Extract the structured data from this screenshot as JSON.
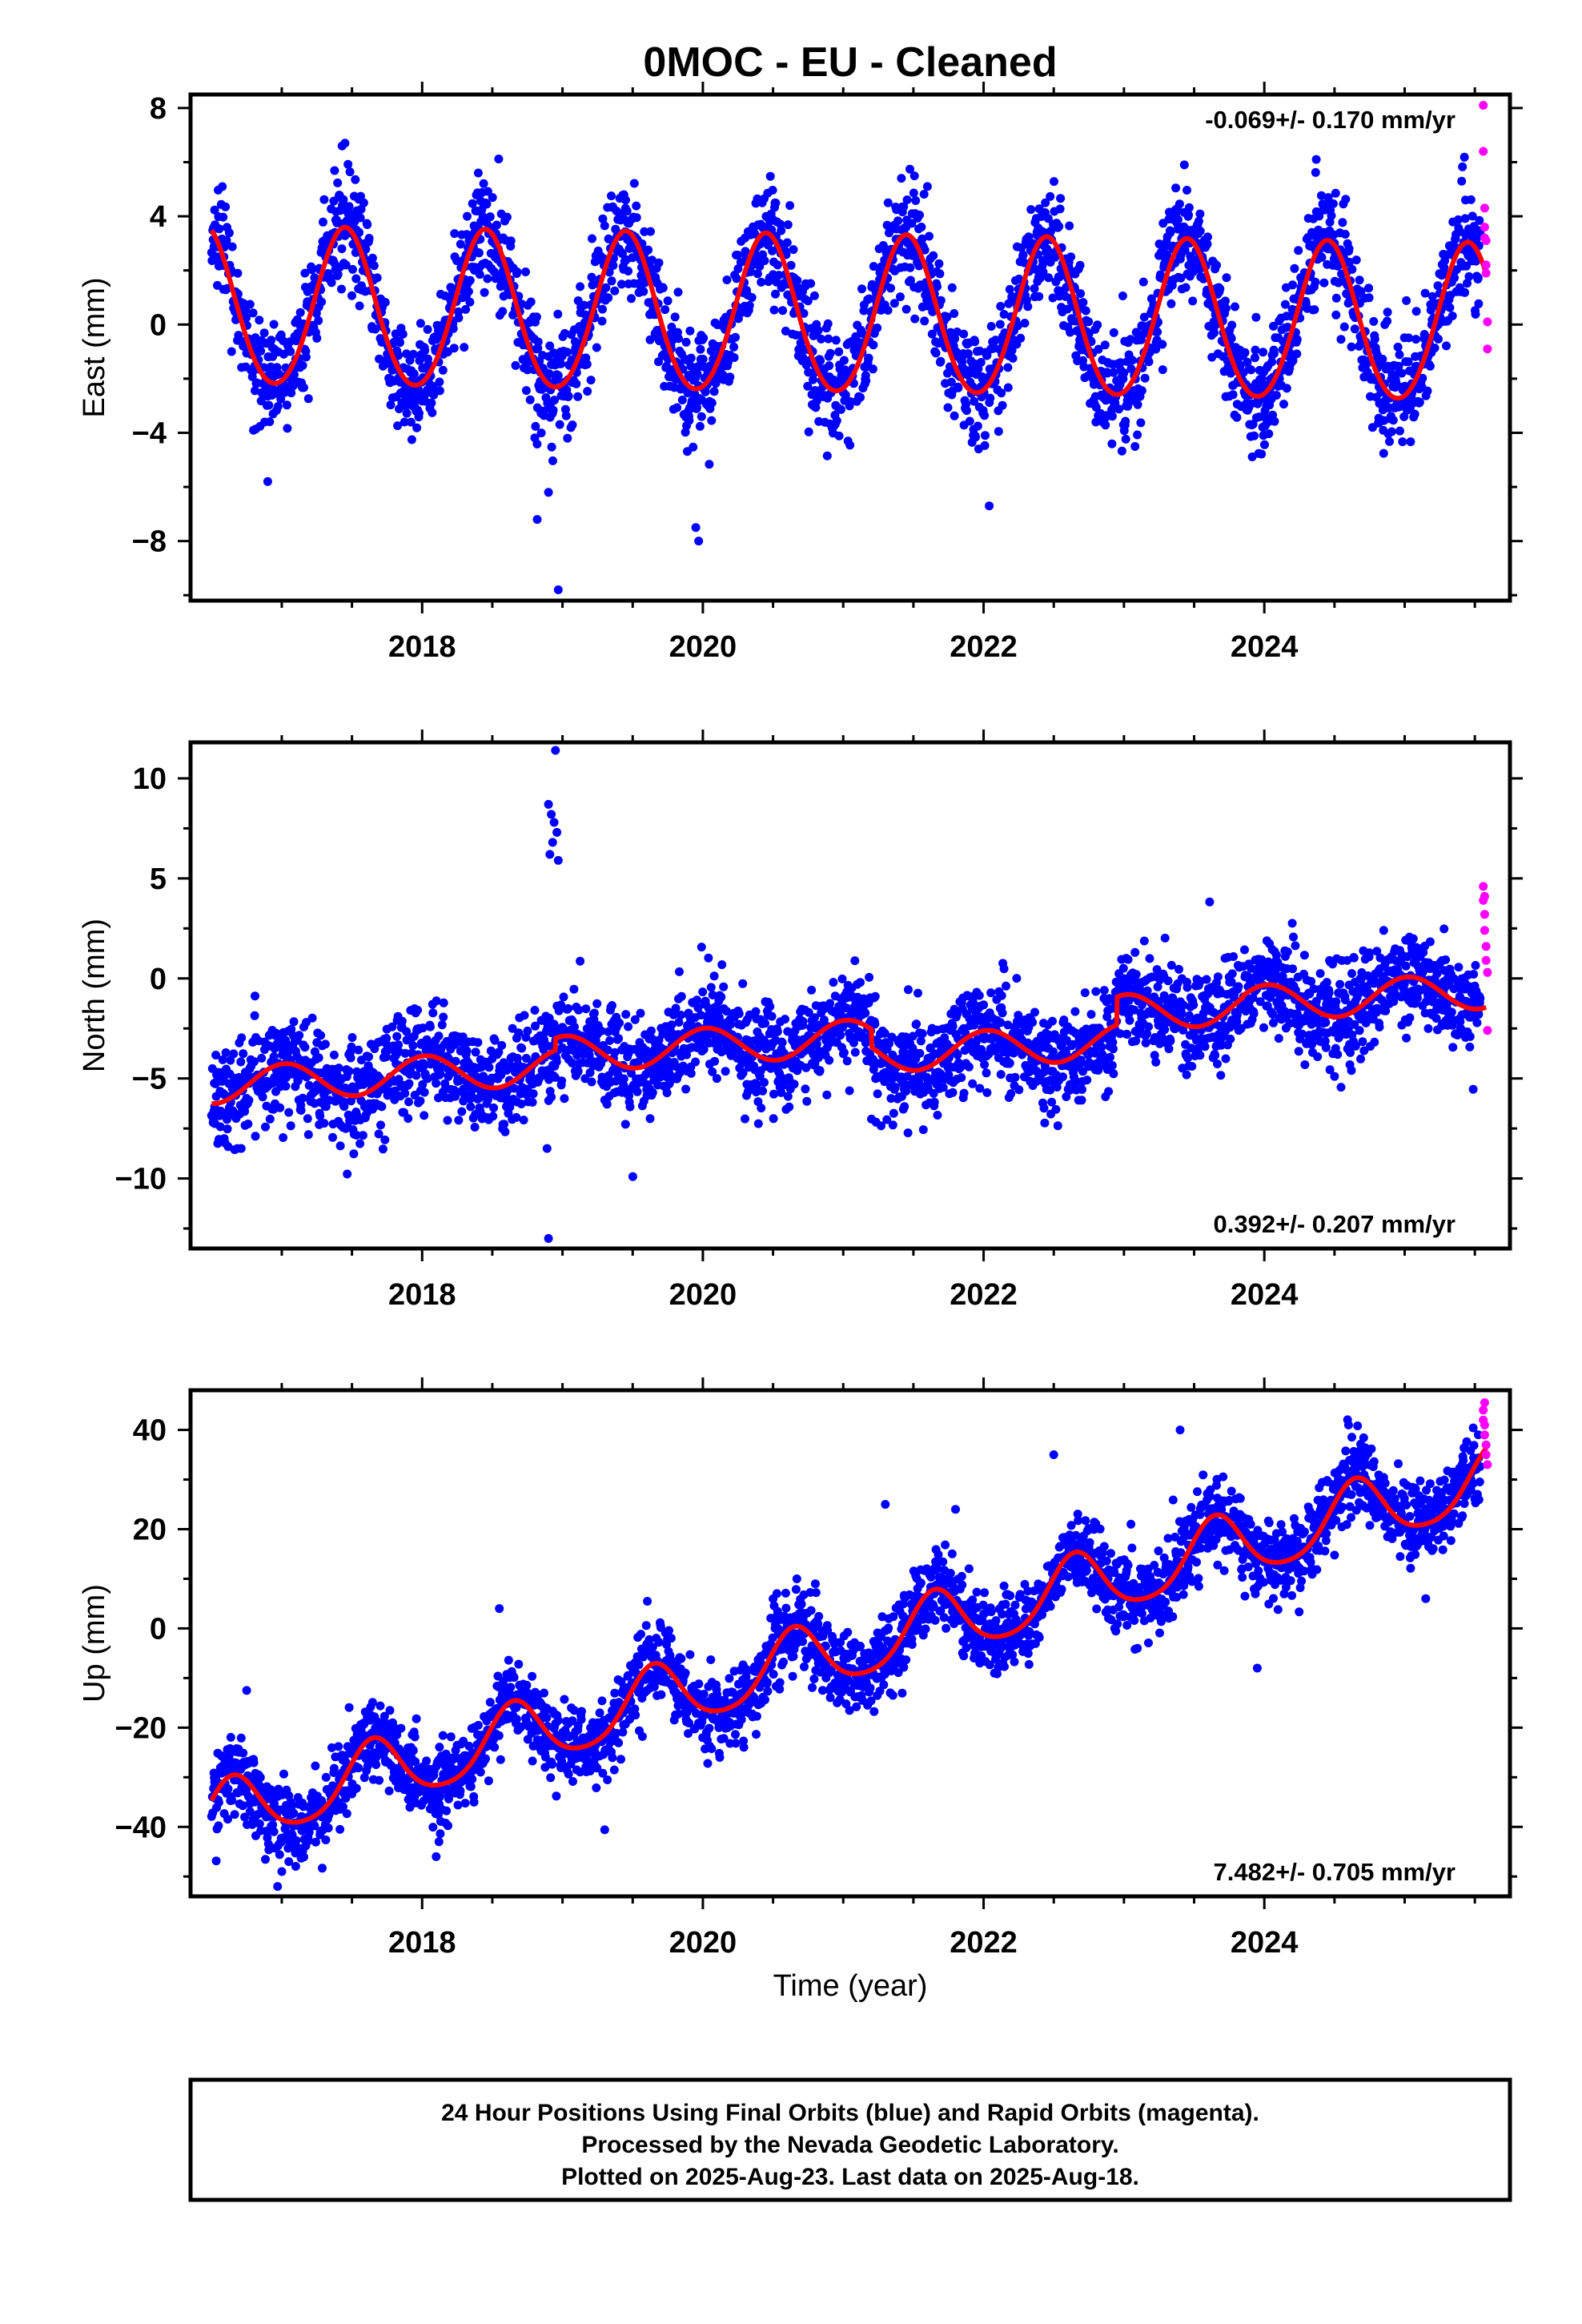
{
  "title": "0MOC  - EU - Cleaned",
  "x_axis_label": "Time (year)",
  "footer": {
    "lines": [
      "24 Hour Positions Using Final Orbits (blue) and Rapid Orbits (magenta).",
      "Processed by the Nevada Geodetic Laboratory.",
      "Plotted on 2025-Aug-23. Last data on 2025-Aug-18."
    ]
  },
  "colors": {
    "final_orbits": "#0000ff",
    "rapid_orbits": "#ff00ff",
    "model_fit": "#ff0000",
    "frame": "#000000"
  },
  "chart_data": [
    {
      "type": "scatter",
      "component": "East",
      "ylabel": "East (mm)",
      "xlim": [
        2016.35,
        2025.75
      ],
      "ylim": [
        -10.2,
        8.5
      ],
      "x_ticks": [
        2018,
        2020,
        2022,
        2024
      ],
      "y_ticks": [
        -8,
        -4,
        0,
        4,
        8
      ],
      "y_tick_labels": [
        "−8",
        "−4",
        "0",
        "4",
        "8"
      ],
      "rate_text": "-0.069+/- 0.170 mm/yr",
      "rate_position": "top-right",
      "model": {
        "offset": 0.25,
        "trend": -0.069,
        "annual_amp": 2.9,
        "annual_peak": 0.45,
        "semiannual_amp": 0.2,
        "ref_year": 2021.0,
        "steps": []
      },
      "scatter_noise": 1.0,
      "series": [
        {
          "name": "Final Orbits (blue)",
          "x_range": [
            2016.5,
            2025.54
          ],
          "cadence_days": 1
        },
        {
          "name": "Rapid Orbits (magenta)",
          "points": [
            [
              2025.56,
              8.1
            ],
            [
              2025.56,
              6.4
            ],
            [
              2025.57,
              4.3
            ],
            [
              2025.57,
              3.6
            ],
            [
              2025.58,
              3.1
            ],
            [
              2025.58,
              1.9
            ],
            [
              2025.59,
              0.1
            ],
            [
              2025.59,
              -0.9
            ],
            [
              2025.57,
              3.2
            ],
            [
              2025.58,
              2.2
            ]
          ]
        }
      ],
      "outliers": [
        [
          2016.9,
          -5.8
        ],
        [
          2018.97,
          -9.8
        ],
        [
          2018.82,
          -7.2
        ],
        [
          2018.9,
          -6.2
        ],
        [
          2019.95,
          -7.5
        ],
        [
          2019.97,
          -8.0
        ],
        [
          2022.04,
          -6.7
        ],
        [
          2017.45,
          6.7
        ],
        [
          2017.43,
          6.6
        ],
        [
          2018.4,
          5.6
        ],
        [
          2023.43,
          5.9
        ],
        [
          2024.37,
          6.1
        ],
        [
          2021.6,
          5.1
        ],
        [
          2021.32,
          4.5
        ],
        [
          2019.45,
          4.6
        ],
        [
          2020.62,
          4.4
        ],
        [
          2022.44,
          4.5
        ]
      ]
    },
    {
      "type": "scatter",
      "component": "North",
      "ylabel": "North (mm)",
      "xlim": [
        2016.35,
        2025.75
      ],
      "ylim": [
        -13.5,
        11.8
      ],
      "x_ticks": [
        2018,
        2020,
        2022,
        2024
      ],
      "y_ticks": [
        -10,
        -5,
        0,
        5,
        10
      ],
      "y_tick_labels": [
        "−10",
        "−5",
        "0",
        "5",
        "10"
      ],
      "rate_text": "0.392+/- 0.207 mm/yr",
      "rate_position": "bottom-right",
      "model": {
        "offset": 0.0,
        "trend": 0.392,
        "annual_amp": 0.9,
        "annual_peak": 0.02,
        "semiannual_amp": 0.0,
        "ref_year": 2021.0,
        "steps": [
          [
            2016.35,
            -3.6
          ],
          [
            2018.95,
            0.6
          ],
          [
            2021.2,
            -0.9
          ],
          [
            2022.95,
            1.4
          ],
          [
            2023.85,
            0.1
          ]
        ]
      },
      "scatter_noise": 1.2,
      "series": [
        {
          "name": "Final Orbits (blue)",
          "x_range": [
            2016.5,
            2025.54
          ],
          "cadence_days": 1
        },
        {
          "name": "Rapid Orbits (magenta)",
          "points": [
            [
              2025.56,
              4.6
            ],
            [
              2025.56,
              3.9
            ],
            [
              2025.57,
              3.2
            ],
            [
              2025.57,
              2.4
            ],
            [
              2025.58,
              1.6
            ],
            [
              2025.58,
              0.9
            ],
            [
              2025.59,
              0.3
            ],
            [
              2025.59,
              -2.6
            ],
            [
              2025.57,
              4.1
            ]
          ]
        }
      ],
      "outliers": [
        [
          2018.95,
          11.4
        ],
        [
          2018.9,
          8.7
        ],
        [
          2018.92,
          8.2
        ],
        [
          2018.94,
          7.8
        ],
        [
          2018.96,
          7.3
        ],
        [
          2018.93,
          6.8
        ],
        [
          2018.91,
          6.2
        ],
        [
          2018.97,
          5.9
        ],
        [
          2018.89,
          -8.5
        ],
        [
          2018.9,
          -13.0
        ],
        [
          2017.05,
          -6.7
        ],
        [
          2017.87,
          -6.7
        ],
        [
          2017.9,
          -7.0
        ],
        [
          2021.78,
          -5.7
        ],
        [
          2020.1,
          -5.0
        ],
        [
          2017.65,
          -4.7
        ]
      ]
    },
    {
      "type": "scatter",
      "component": "Up",
      "ylabel": "Up (mm)",
      "xlim": [
        2016.35,
        2025.75
      ],
      "ylim": [
        -54,
        48
      ],
      "x_ticks": [
        2018,
        2020,
        2022,
        2024
      ],
      "y_ticks": [
        -40,
        -20,
        0,
        20,
        40
      ],
      "y_tick_labels": [
        "−40",
        "−20",
        "0",
        "20",
        "40"
      ],
      "rate_text": "7.482+/- 0.705 mm/yr",
      "rate_position": "bottom-right",
      "model": {
        "offset": -4.5,
        "trend": 7.482,
        "annual_amp": 6.5,
        "annual_peak": 0.65,
        "semiannual_amp": 1.0,
        "ref_year": 2021.0,
        "steps": []
      },
      "scatter_noise": 4.0,
      "series": [
        {
          "name": "Final Orbits (blue)",
          "x_range": [
            2016.5,
            2025.54
          ],
          "cadence_days": 1
        },
        {
          "name": "Rapid Orbits (magenta)",
          "points": [
            [
              2025.56,
              44.0
            ],
            [
              2025.56,
              42.0
            ],
            [
              2025.57,
              41.0
            ],
            [
              2025.57,
              39.0
            ],
            [
              2025.58,
              37.0
            ],
            [
              2025.58,
              35.0
            ],
            [
              2025.59,
              33.0
            ],
            [
              2025.57,
              45.5
            ]
          ]
        }
      ],
      "outliers": [
        [
          2016.97,
          -52.0
        ],
        [
          2017.0,
          -49.0
        ],
        [
          2017.05,
          -47.0
        ],
        [
          2016.75,
          -12.5
        ],
        [
          2018.1,
          -46.0
        ],
        [
          2018.12,
          -43.0
        ],
        [
          2018.55,
          4.0
        ],
        [
          2020.12,
          -26.0
        ],
        [
          2021.3,
          25.0
        ],
        [
          2022.5,
          35.0
        ],
        [
          2023.4,
          40.0
        ],
        [
          2023.95,
          -8.0
        ],
        [
          2025.15,
          6.0
        ],
        [
          2024.6,
          41.0
        ],
        [
          2021.8,
          24.0
        ],
        [
          2023.05,
          21.0
        ]
      ]
    }
  ]
}
